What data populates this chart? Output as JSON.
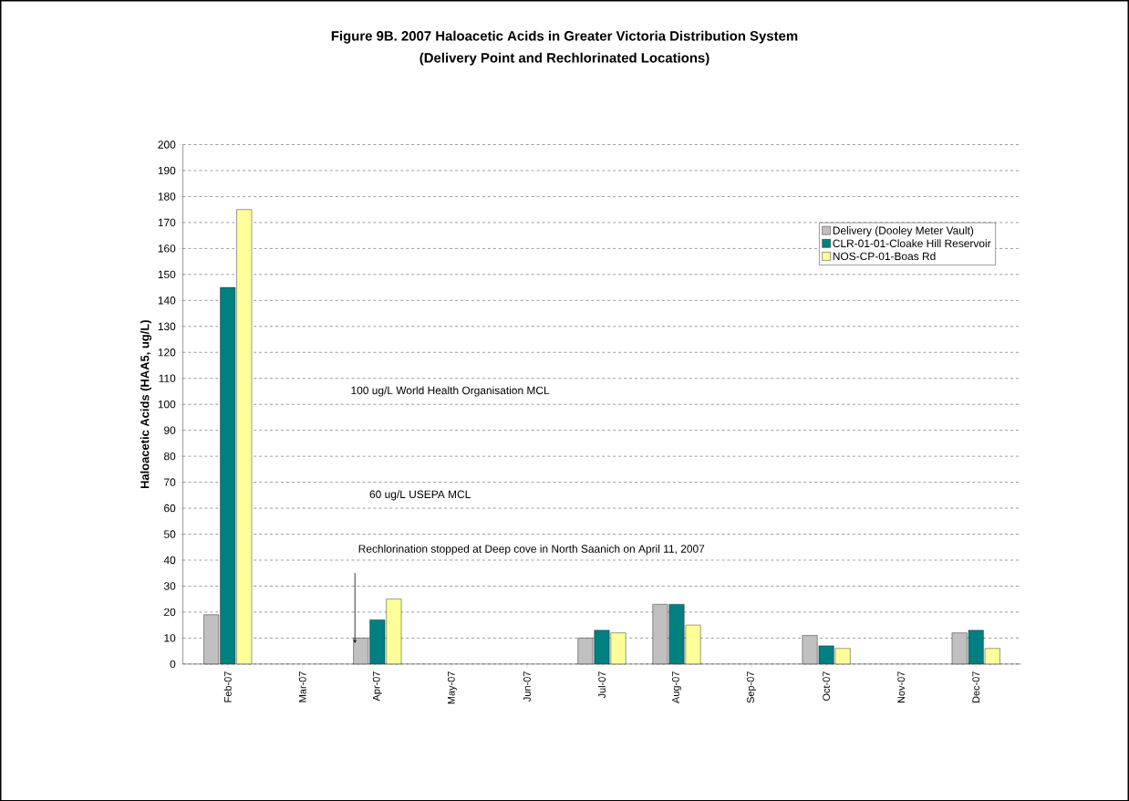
{
  "chart_data": {
    "type": "bar",
    "title": "Figure 9B.  2007 Haloacetic Acids in Greater Victoria Distribution System",
    "subtitle": "(Delivery Point and Rechlorinated Locations)",
    "ylabel": "Haloacetic Acids (HAA5, ug/L)",
    "categories": [
      "Feb-07",
      "Mar-07",
      "Apr-07",
      "May-07",
      "Jun-07",
      "Jul-07",
      "Aug-07",
      "Sep-07",
      "Oct-07",
      "Nov-07",
      "Dec-07"
    ],
    "series": [
      {
        "name": "Delivery (Dooley Meter Vault)",
        "color": "#c0c0c0",
        "values": [
          19,
          null,
          10,
          null,
          null,
          10,
          23,
          null,
          11,
          null,
          12
        ]
      },
      {
        "name": "CLR-01-01-Cloake Hill Reservoir",
        "color": "#008080",
        "values": [
          145,
          null,
          17,
          null,
          null,
          13,
          23,
          null,
          7,
          null,
          13
        ]
      },
      {
        "name": "NOS-CP-01-Boas Rd",
        "color": "#ffff99",
        "values": [
          175,
          null,
          25,
          null,
          null,
          12,
          15,
          null,
          6,
          null,
          6
        ]
      }
    ],
    "ylim": [
      0,
      200
    ],
    "yticks": [
      0,
      10,
      20,
      30,
      40,
      50,
      60,
      70,
      80,
      90,
      100,
      110,
      120,
      130,
      140,
      150,
      160,
      170,
      180,
      190,
      200
    ],
    "grid": "y",
    "legend": "top right",
    "annotations": [
      "100 ug/L World Health Organisation MCL",
      "60 ug/L USEPA MCL",
      "Rechlorination stopped at Deep cove in North Saanich  on April 11, 2007"
    ]
  }
}
